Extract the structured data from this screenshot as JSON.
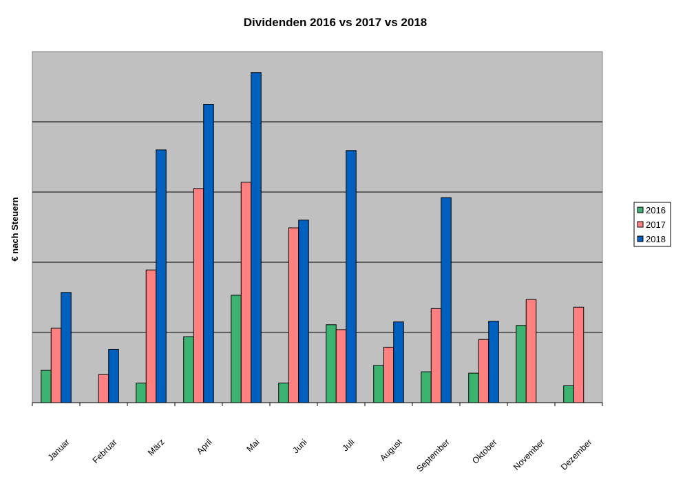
{
  "chart_data": {
    "type": "bar",
    "title": "Dividenden 2016 vs 2017 vs 2018",
    "xlabel": "",
    "ylabel": "€ nach Steuern",
    "categories": [
      "Januar",
      "Februar",
      "März",
      "April",
      "Mai",
      "Juni",
      "Juli",
      "August",
      "September",
      "Oktober",
      "November",
      "Dezember"
    ],
    "ylim": [
      0,
      5
    ],
    "grid": true,
    "legend_position": "right",
    "series": [
      {
        "name": "2016",
        "color": "#3cb371",
        "values": [
          0.46,
          null,
          0.28,
          0.94,
          1.53,
          0.28,
          1.11,
          0.53,
          0.44,
          0.42,
          1.1,
          0.24
        ]
      },
      {
        "name": "2017",
        "color": "#ff8080",
        "values": [
          1.06,
          0.4,
          1.89,
          3.05,
          3.14,
          2.49,
          1.04,
          0.79,
          1.34,
          0.9,
          1.47,
          1.36
        ]
      },
      {
        "name": "2018",
        "color": "#0060c0",
        "values": [
          1.57,
          0.76,
          3.6,
          4.25,
          4.7,
          2.6,
          3.59,
          1.15,
          2.92,
          1.16,
          null,
          null
        ]
      }
    ]
  }
}
